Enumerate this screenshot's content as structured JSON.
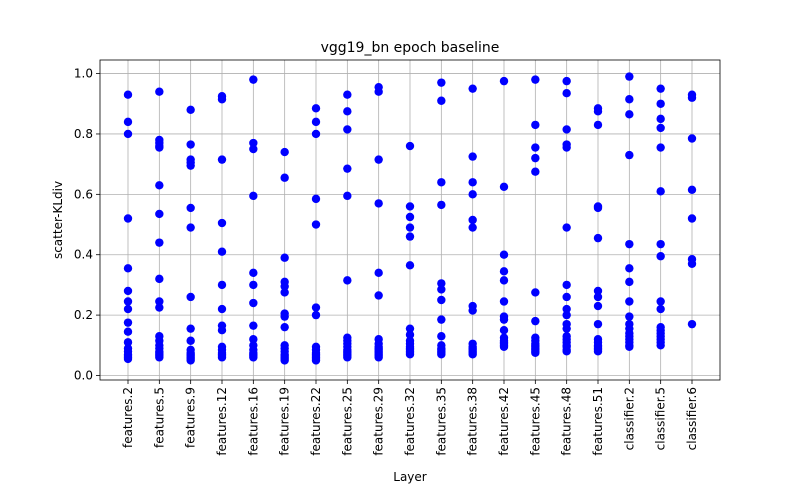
{
  "chart_data": {
    "type": "scatter",
    "title": "vgg19_bn epoch baseline",
    "xlabel": "Layer",
    "ylabel": "scatter-KLdiv",
    "ylim": [
      -0.015,
      1.045
    ],
    "yticks": [
      0.0,
      0.2,
      0.4,
      0.6,
      0.8,
      1.0
    ],
    "ytick_labels": [
      "0.0",
      "0.2",
      "0.4",
      "0.6",
      "0.8",
      "1.0"
    ],
    "grid": true,
    "color": "#0000ff",
    "categories": [
      "features.2",
      "features.5",
      "features.9",
      "features.12",
      "features.16",
      "features.19",
      "features.22",
      "features.25",
      "features.29",
      "features.32",
      "features.35",
      "features.38",
      "features.42",
      "features.45",
      "features.48",
      "features.51",
      "classifier.2",
      "classifier.5",
      "classifier.6"
    ],
    "points": [
      [
        0.93,
        0.84,
        0.8,
        0.52,
        0.355,
        0.28,
        0.245,
        0.22,
        0.175,
        0.145,
        0.11,
        0.09,
        0.08,
        0.07,
        0.065,
        0.06,
        0.055
      ],
      [
        0.94,
        0.78,
        0.77,
        0.76,
        0.755,
        0.63,
        0.535,
        0.44,
        0.32,
        0.245,
        0.225,
        0.13,
        0.115,
        0.1,
        0.09,
        0.08,
        0.075,
        0.07,
        0.065,
        0.06
      ],
      [
        0.88,
        0.765,
        0.715,
        0.705,
        0.695,
        0.555,
        0.49,
        0.26,
        0.155,
        0.115,
        0.085,
        0.075,
        0.07,
        0.065,
        0.06,
        0.055,
        0.05
      ],
      [
        0.925,
        0.915,
        0.715,
        0.505,
        0.41,
        0.3,
        0.22,
        0.165,
        0.15,
        0.095,
        0.085,
        0.075,
        0.07,
        0.065,
        0.06
      ],
      [
        0.98,
        0.77,
        0.75,
        0.595,
        0.34,
        0.3,
        0.24,
        0.165,
        0.12,
        0.1,
        0.085,
        0.075,
        0.07,
        0.065,
        0.06
      ],
      [
        0.74,
        0.655,
        0.39,
        0.31,
        0.295,
        0.275,
        0.205,
        0.195,
        0.16,
        0.1,
        0.09,
        0.08,
        0.07,
        0.065,
        0.06,
        0.055,
        0.05
      ],
      [
        0.885,
        0.84,
        0.8,
        0.585,
        0.5,
        0.225,
        0.2,
        0.095,
        0.085,
        0.075,
        0.07,
        0.065,
        0.06,
        0.055,
        0.05
      ],
      [
        0.93,
        0.875,
        0.815,
        0.685,
        0.595,
        0.315,
        0.125,
        0.115,
        0.105,
        0.095,
        0.085,
        0.08,
        0.075,
        0.07,
        0.065,
        0.06
      ],
      [
        0.955,
        0.94,
        0.715,
        0.57,
        0.34,
        0.265,
        0.12,
        0.105,
        0.095,
        0.09,
        0.085,
        0.08,
        0.075,
        0.07,
        0.065,
        0.06
      ],
      [
        0.76,
        0.56,
        0.525,
        0.49,
        0.46,
        0.365,
        0.155,
        0.135,
        0.115,
        0.105,
        0.095,
        0.09,
        0.085,
        0.08,
        0.075,
        0.07
      ],
      [
        0.97,
        0.91,
        0.64,
        0.565,
        0.305,
        0.285,
        0.25,
        0.185,
        0.13,
        0.1,
        0.09,
        0.085,
        0.08,
        0.075,
        0.07
      ],
      [
        0.95,
        0.725,
        0.64,
        0.6,
        0.515,
        0.49,
        0.23,
        0.215,
        0.105,
        0.095,
        0.09,
        0.085,
        0.08,
        0.075,
        0.07
      ],
      [
        0.975,
        0.625,
        0.4,
        0.345,
        0.315,
        0.245,
        0.195,
        0.185,
        0.15,
        0.125,
        0.115,
        0.11,
        0.105,
        0.1,
        0.095
      ],
      [
        0.98,
        0.83,
        0.755,
        0.72,
        0.675,
        0.275,
        0.18,
        0.125,
        0.115,
        0.105,
        0.1,
        0.095,
        0.09,
        0.085,
        0.08,
        0.075
      ],
      [
        0.975,
        0.935,
        0.815,
        0.765,
        0.755,
        0.49,
        0.3,
        0.26,
        0.22,
        0.2,
        0.17,
        0.155,
        0.13,
        0.12,
        0.11,
        0.1,
        0.095,
        0.085,
        0.08
      ],
      [
        0.885,
        0.875,
        0.83,
        0.56,
        0.555,
        0.455,
        0.28,
        0.26,
        0.23,
        0.17,
        0.12,
        0.11,
        0.1,
        0.095,
        0.09,
        0.085,
        0.08
      ],
      [
        0.99,
        0.915,
        0.865,
        0.73,
        0.435,
        0.355,
        0.31,
        0.245,
        0.195,
        0.17,
        0.155,
        0.14,
        0.13,
        0.12,
        0.11,
        0.1,
        0.095
      ],
      [
        0.95,
        0.9,
        0.85,
        0.82,
        0.755,
        0.61,
        0.435,
        0.395,
        0.245,
        0.22,
        0.16,
        0.15,
        0.14,
        0.13,
        0.12,
        0.11,
        0.1
      ],
      [
        0.93,
        0.92,
        0.785,
        0.615,
        0.52,
        0.385,
        0.37,
        0.17
      ]
    ]
  }
}
